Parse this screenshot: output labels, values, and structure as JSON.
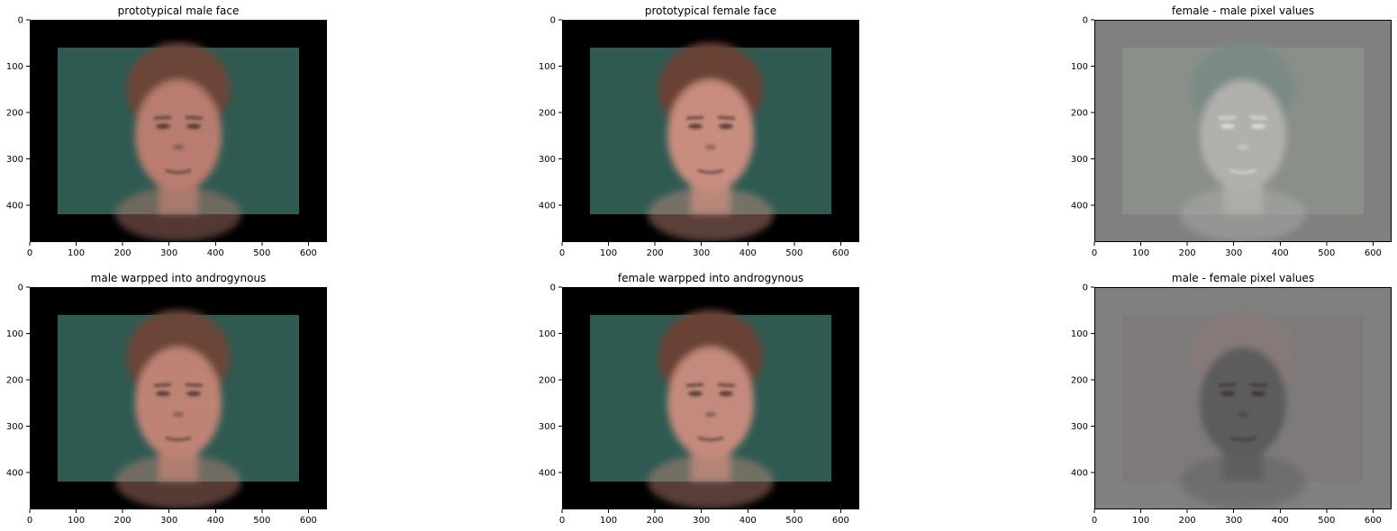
{
  "chart_data": [
    {
      "type": "image",
      "title": "prototypical male face",
      "image": "face-male",
      "x_ticks": [
        0,
        100,
        200,
        300,
        400,
        500,
        600
      ],
      "y_ticks": [
        0,
        100,
        200,
        300,
        400
      ],
      "xlim": [
        0,
        640
      ],
      "ylim": [
        480,
        0
      ],
      "panel_bg": "#000000",
      "face_bg": "#2f5a52",
      "skin": "#b87d70",
      "hair": "#6a4538"
    },
    {
      "type": "image",
      "title": "prototypical female face",
      "image": "face-female",
      "x_ticks": [
        0,
        100,
        200,
        300,
        400,
        500,
        600
      ],
      "y_ticks": [
        0,
        100,
        200,
        300,
        400
      ],
      "xlim": [
        0,
        640
      ],
      "ylim": [
        480,
        0
      ],
      "panel_bg": "#000000",
      "face_bg": "#2f5a52",
      "skin": "#c98d80",
      "hair": "#6a4234"
    },
    {
      "type": "image",
      "title": "female - male pixel values",
      "image": "diff-female-male",
      "x_ticks": [
        0,
        100,
        200,
        300,
        400,
        500,
        600
      ],
      "y_ticks": [
        0,
        100,
        200,
        300,
        400
      ],
      "xlim": [
        0,
        640
      ],
      "ylim": [
        480,
        0
      ],
      "panel_bg": "#808080",
      "face_bg": "#8a8f88",
      "skin": "#b0b0ac",
      "hair": "#7c8a86"
    },
    {
      "type": "image",
      "title": "male warpped into androgynous",
      "image": "face-male-warped",
      "x_ticks": [
        0,
        100,
        200,
        300,
        400,
        500,
        600
      ],
      "y_ticks": [
        0,
        100,
        200,
        300,
        400
      ],
      "xlim": [
        0,
        640
      ],
      "ylim": [
        480,
        0
      ],
      "panel_bg": "#000000",
      "face_bg": "#2f5a52",
      "skin": "#bf8376",
      "hair": "#6a4538"
    },
    {
      "type": "image",
      "title": "female warpped into androgynous",
      "image": "face-female-warped",
      "x_ticks": [
        0,
        100,
        200,
        300,
        400,
        500,
        600
      ],
      "y_ticks": [
        0,
        100,
        200,
        300,
        400
      ],
      "xlim": [
        0,
        640
      ],
      "ylim": [
        480,
        0
      ],
      "panel_bg": "#000000",
      "face_bg": "#2f5a52",
      "skin": "#c48a7d",
      "hair": "#6a4234"
    },
    {
      "type": "image",
      "title": "male - female pixel values",
      "image": "diff-male-female",
      "x_ticks": [
        0,
        100,
        200,
        300,
        400,
        500,
        600
      ],
      "y_ticks": [
        0,
        100,
        200,
        300,
        400
      ],
      "xlim": [
        0,
        640
      ],
      "ylim": [
        480,
        0
      ],
      "panel_bg": "#808080",
      "face_bg": "#7e7a7a",
      "skin": "#5c5c5c",
      "hair": "#857a78"
    }
  ]
}
